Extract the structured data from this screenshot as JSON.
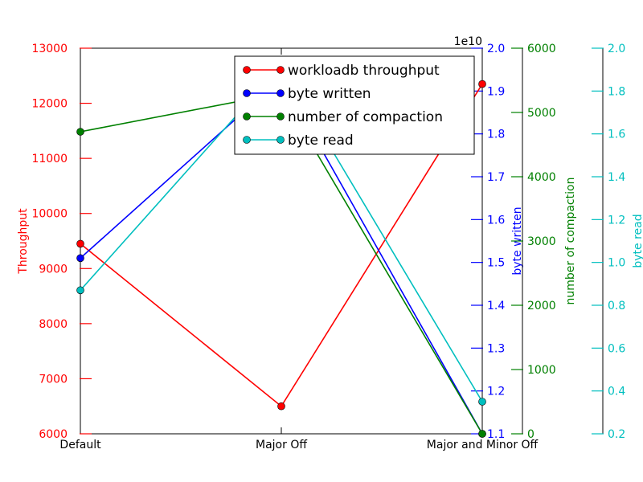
{
  "chart_data": {
    "type": "line",
    "categories": [
      "Default",
      "Major Off",
      "Major and Minor Off"
    ],
    "grid": false,
    "legend_position": "top-right",
    "axes": {
      "throughput": {
        "label": "Throughput",
        "color": "#ff0000",
        "side": "left",
        "range": [
          6000,
          13000
        ],
        "ticks": [
          "6000",
          "7000",
          "8000",
          "9000",
          "10000",
          "11000",
          "12000",
          "13000"
        ]
      },
      "byte_written": {
        "label": "byte written",
        "color": "#0000ff",
        "side": "right",
        "range": [
          1.1,
          2.0
        ],
        "ticks": [
          "1.1",
          "1.2",
          "1.3",
          "1.4",
          "1.5",
          "1.6",
          "1.7",
          "1.8",
          "1.9",
          "2.0"
        ],
        "offset_text": "1e10"
      },
      "compaction": {
        "label": "number of compaction",
        "color": "#008000",
        "side": "right",
        "range": [
          0,
          6000
        ],
        "ticks": [
          "0",
          "1000",
          "2000",
          "3000",
          "4000",
          "5000",
          "6000"
        ]
      },
      "byte_read": {
        "label": "byte read",
        "color": "#00bfbf",
        "side": "right",
        "range": [
          0.2,
          2.0
        ],
        "ticks": [
          "0.2",
          "0.4",
          "0.6",
          "0.8",
          "1.0",
          "1.2",
          "1.4",
          "1.6",
          "1.8",
          "2.0"
        ]
      }
    },
    "series": [
      {
        "name": "workloadb throughput",
        "axis": "throughput",
        "color": "#ff0000",
        "values": [
          9450,
          6500,
          12350
        ]
      },
      {
        "name": "byte written",
        "axis": "byte_written",
        "color": "#0000ff",
        "values": [
          1.51,
          1.93,
          1.1
        ]
      },
      {
        "name": "number of compaction",
        "axis": "compaction",
        "color": "#008000",
        "values": [
          4700,
          5300,
          0
        ]
      },
      {
        "name": "byte read",
        "axis": "byte_read",
        "color": "#00bfbf",
        "values": [
          0.87,
          1.92,
          0.35
        ]
      }
    ]
  }
}
